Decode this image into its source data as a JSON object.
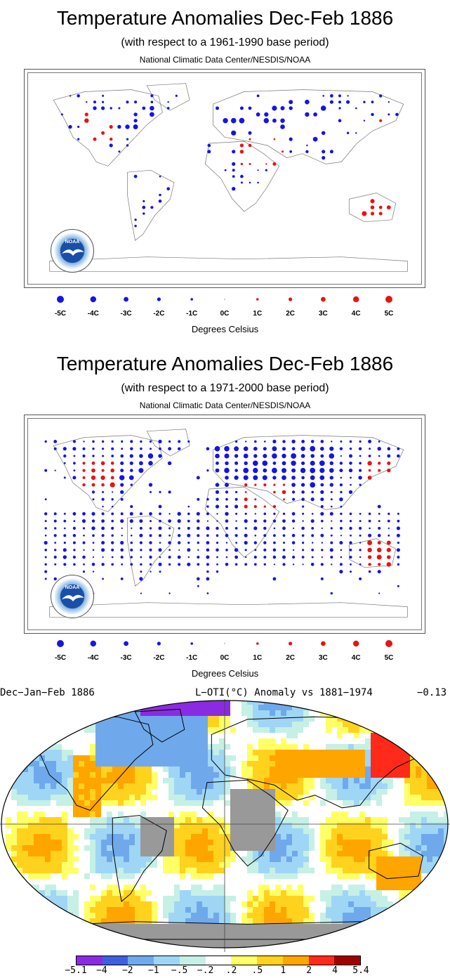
{
  "panel1": {
    "title": "Temperature Anomalies Dec-Feb 1886",
    "subtitle": "(with respect to a 1961-1990 base period)",
    "credit": "National Climatic Data Center/NESDIS/NOAA",
    "legend_title": "Degrees Celsius"
  },
  "panel2": {
    "title": "Temperature Anomalies Dec-Feb 1886",
    "subtitle": "(with respect to a 1971-2000 base period)",
    "credit": "National Climatic Data Center/NESDIS/NOAA",
    "legend_title": "Degrees Celsius"
  },
  "legend": {
    "labels": [
      "-5C",
      "-4C",
      "-3C",
      "-2C",
      "-1C",
      "0C",
      "1C",
      "2C",
      "3C",
      "4C",
      "5C"
    ],
    "values": [
      -5,
      -4,
      -3,
      -2,
      -1,
      0,
      1,
      2,
      3,
      4,
      5
    ],
    "cold_color": "#1414e6",
    "warm_color": "#e61414"
  },
  "logo": {
    "text": "NOAA"
  },
  "panel3": {
    "left": "Dec−Jan−Feb 1886",
    "middle": "L−OTI(°C) Anomaly vs 1881−1974",
    "right": "−0.13",
    "colorbar_labels": [
      "−5.1",
      "−4",
      "−2",
      "−1",
      "−.5",
      "−.2",
      ".2",
      ".5",
      "1",
      "2",
      "4",
      "5.4"
    ],
    "colorbar_colors": [
      "#8a2be2",
      "#3f5ee0",
      "#6fa9ec",
      "#9fd6f5",
      "#c6f0e6",
      "#ffffff",
      "#ffff66",
      "#ffd21e",
      "#ffa500",
      "#ff2a1a",
      "#a00000"
    ],
    "missing_color": "#999999"
  }
}
